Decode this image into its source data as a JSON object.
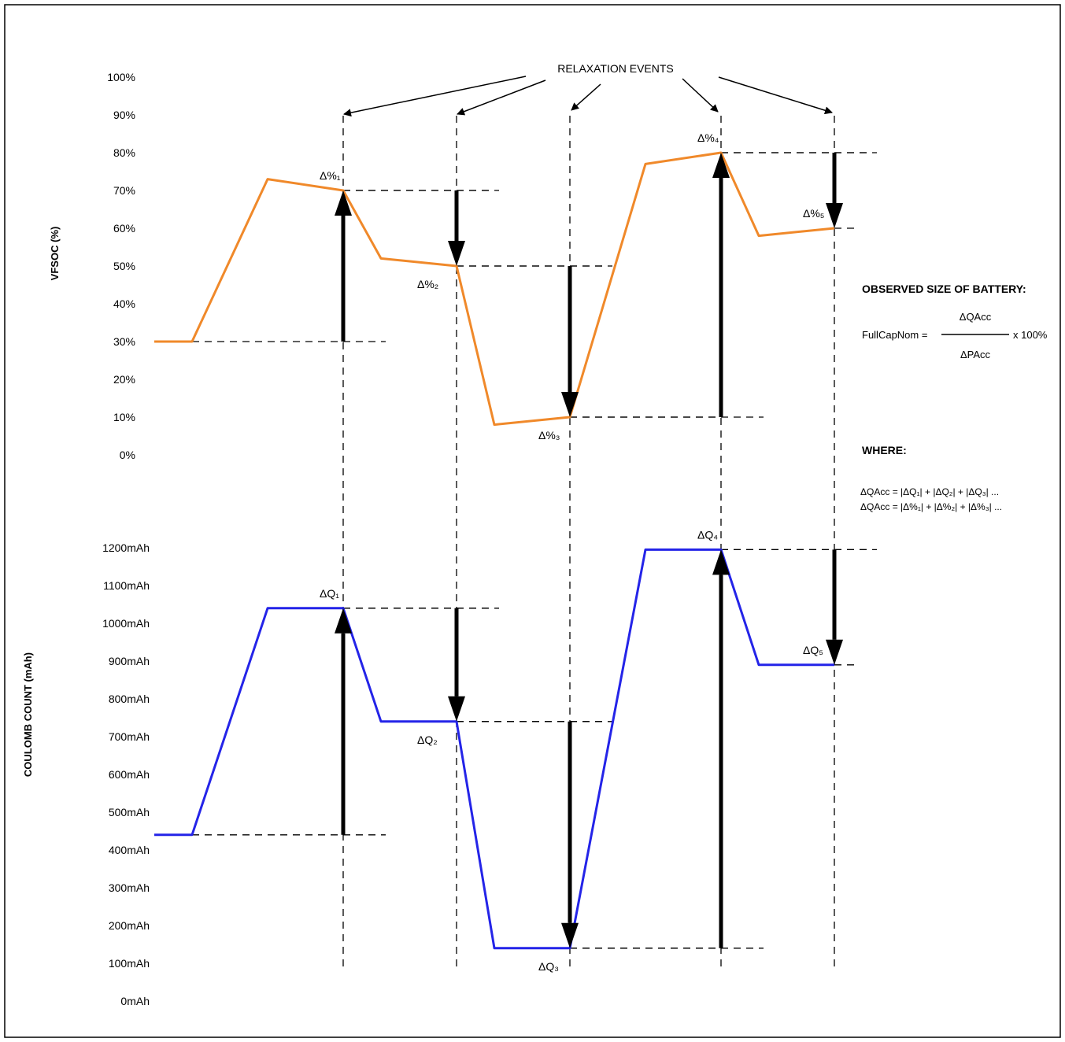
{
  "annotations": {
    "relaxation_events": "RELAXATION EVENTS",
    "observed_title": "OBSERVED SIZE OF BATTERY:",
    "formula_lhs": "FullCapNom =",
    "formula_numerator": "ΔQAcc",
    "formula_denominator": "ΔPAcc",
    "formula_factor": "x 100%",
    "where_title": "WHERE:",
    "where_line_1": "ΔQAcc = |ΔQ₁| + |ΔQ₂| + |ΔQ₃| ...",
    "where_line_2": "ΔQAcc = |Δ%₁| + |Δ%₂| + |Δ%₃| ..."
  },
  "colors": {
    "vfsoc_line": "#F0892A",
    "coulomb_line": "#2424E8",
    "arrows": "#000000"
  },
  "chart_data": [
    {
      "type": "line",
      "ylabel": "VFSOC (%)",
      "ylim": [
        0,
        100
      ],
      "yticks": [
        0,
        10,
        20,
        30,
        40,
        50,
        60,
        70,
        80,
        90,
        100
      ],
      "ytick_labels": [
        "0%",
        "10%",
        "20%",
        "30%",
        "40%",
        "50%",
        "60%",
        "70%",
        "80%",
        "90%",
        "100%"
      ],
      "grid": false,
      "series": [
        {
          "points": [
            [
              0,
              30
            ],
            [
              1,
              30
            ],
            [
              3,
              73
            ],
            [
              5,
              70
            ],
            [
              6,
              52
            ],
            [
              8,
              50
            ],
            [
              9,
              8
            ],
            [
              11,
              10
            ],
            [
              13,
              77
            ],
            [
              15,
              80
            ],
            [
              16,
              58
            ],
            [
              18,
              60
            ]
          ]
        }
      ],
      "relaxation_events": [
        {
          "label": "Δ%₁",
          "from": 30,
          "to": 70
        },
        {
          "label": "Δ%₂",
          "from": 70,
          "to": 50
        },
        {
          "label": "Δ%₃",
          "from": 50,
          "to": 10
        },
        {
          "label": "Δ%₄",
          "from": 10,
          "to": 80
        },
        {
          "label": "Δ%₅",
          "from": 80,
          "to": 60
        }
      ]
    },
    {
      "type": "line",
      "ylabel": "COULOMB COUNT (mAh)",
      "ylim": [
        0,
        1200
      ],
      "yticks": [
        0,
        100,
        200,
        300,
        400,
        500,
        600,
        700,
        800,
        900,
        1000,
        1100,
        1200
      ],
      "ytick_labels": [
        "0mAh",
        "100mAh",
        "200mAh",
        "300mAh",
        "400mAh",
        "500mAh",
        "600mAh",
        "700mAh",
        "800mAh",
        "900mAh",
        "1000mAh",
        "1100mAh",
        "1200mAh"
      ],
      "grid": false,
      "series": [
        {
          "points": [
            [
              0,
              440
            ],
            [
              1,
              440
            ],
            [
              3,
              1040
            ],
            [
              5,
              1040
            ],
            [
              6,
              740
            ],
            [
              8,
              740
            ],
            [
              9,
              140
            ],
            [
              11,
              140
            ],
            [
              13,
              1195
            ],
            [
              15,
              1195
            ],
            [
              16,
              890
            ],
            [
              18,
              890
            ]
          ]
        }
      ],
      "relaxation_events": [
        {
          "label": "ΔQ₁",
          "from": 440,
          "to": 1040
        },
        {
          "label": "ΔQ₂",
          "from": 1040,
          "to": 740
        },
        {
          "label": "ΔQ₃",
          "from": 740,
          "to": 140
        },
        {
          "label": "ΔQ₄",
          "from": 140,
          "to": 1195
        },
        {
          "label": "ΔQ₅",
          "from": 1195,
          "to": 890
        }
      ]
    }
  ]
}
